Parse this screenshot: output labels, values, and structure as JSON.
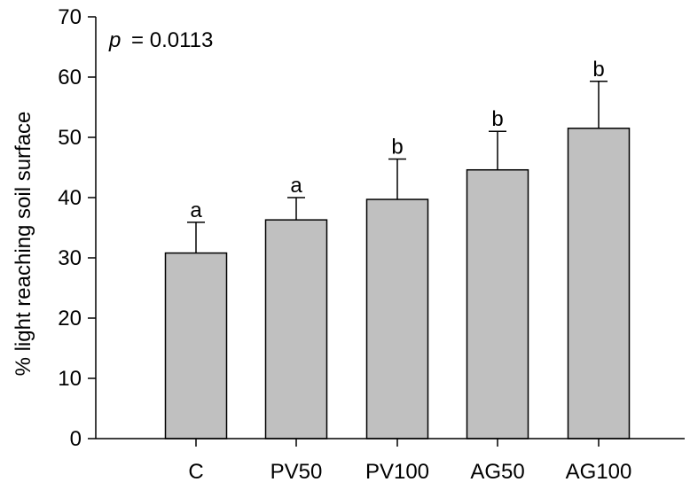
{
  "chart_data": {
    "type": "bar",
    "categories": [
      "C",
      "PV50",
      "PV100",
      "AG50",
      "AG100"
    ],
    "values": [
      30.8,
      36.3,
      39.7,
      44.6,
      51.5
    ],
    "error_upper": [
      35.9,
      40.0,
      46.4,
      51.0,
      59.3
    ],
    "significance_letters": [
      "a",
      "a",
      "b",
      "b",
      "b"
    ],
    "ylabel": "% light reaching soil surface",
    "xlabel": "",
    "ylim": [
      0,
      70
    ],
    "yticks": [
      "0",
      "10",
      "20",
      "30",
      "40",
      "50",
      "60",
      "70"
    ],
    "annotation": {
      "italic": "p",
      "text": "= 0.0113"
    },
    "grid": false,
    "bar_color": "#c0c0c0",
    "edge_color": "#000000"
  }
}
